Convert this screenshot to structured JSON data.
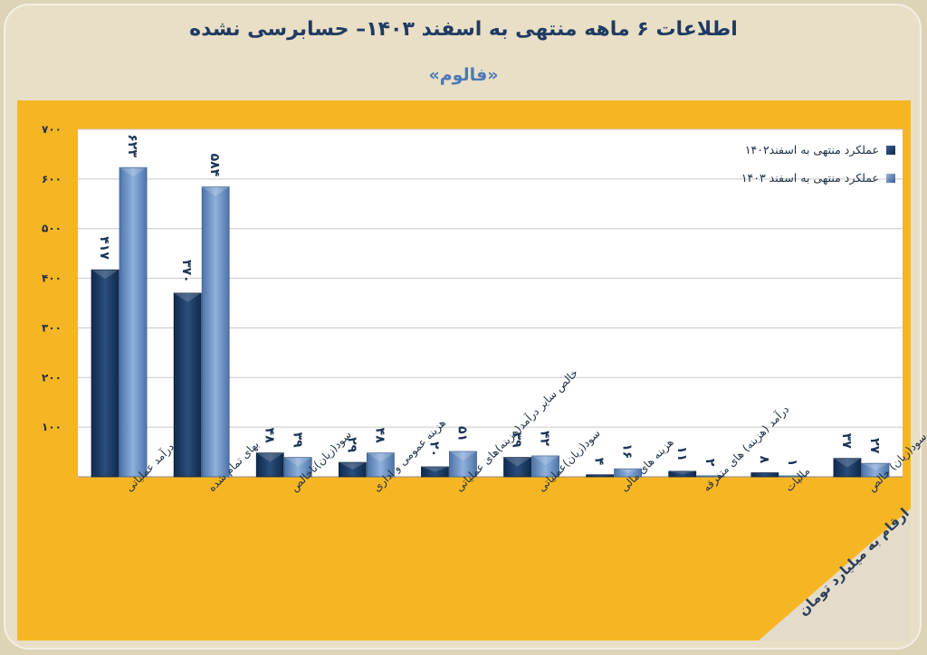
{
  "header": {
    "title": "اطلاعات ۶ ماهه منتهی به اسفند ۱۴۰۳– حسابرسی نشده",
    "subtitle": "«فالوم»"
  },
  "unit_note": "ارقام به میلیارد تومان",
  "colors": {
    "background": "#ddd3b6",
    "panel": "#f6b623",
    "series_1": "#15345c",
    "series_2": "#6288bd",
    "title": "#1f3b63"
  },
  "chart_data": {
    "type": "bar",
    "title": "اطلاعات ۶ ماهه منتهی به اسفند ۱۴۰۳– حسابرسی نشده",
    "ylim": [
      0,
      700
    ],
    "yticks": [
      {
        "value": 100,
        "label": "۱۰۰"
      },
      {
        "value": 200,
        "label": "۲۰۰"
      },
      {
        "value": 300,
        "label": "۳۰۰"
      },
      {
        "value": 400,
        "label": "۴۰۰"
      },
      {
        "value": 500,
        "label": "۵۰۰"
      },
      {
        "value": 600,
        "label": "۶۰۰"
      },
      {
        "value": 700,
        "label": "۷۰۰"
      }
    ],
    "grid": true,
    "legend_position": "top-right",
    "categories": [
      "درآمد عملیاتی",
      "بهای تمام شده",
      "سود(زیان)ناخالص",
      "هزینه عمومی و اداری",
      "خالص سایر درآمد(هزینه)های عملیاتی",
      "سود(زیان)عملیاتی",
      "هزینه های مالی",
      "درآمد (هزینه) های متفرقه",
      "مالیات",
      "سود(زیان) خالص"
    ],
    "series": [
      {
        "name": "عملکرد منتهی به اسفند۱۴۰۲",
        "values": [
          417,
          370,
          48,
          29,
          20,
          39,
          4,
          11,
          8,
          37
        ],
        "labels": [
          "۴۱۷",
          "۳۷۰",
          "۴۸",
          "۲۹",
          "۲۰",
          "۳۹",
          "۴",
          "۱۱",
          "۸",
          "۳۷"
        ]
      },
      {
        "name": "عملکرد منتهی به اسفند ۱۴۰۳",
        "values": [
          623,
          584,
          39,
          48,
          51,
          42,
          16,
          2,
          1,
          27
        ],
        "labels": [
          "۶۲۳",
          "۵۸۴",
          "۳۹",
          "۴۸",
          "۵۱",
          "۴۲",
          "۱۶",
          "۲",
          "۱",
          "۲۷"
        ]
      }
    ]
  }
}
